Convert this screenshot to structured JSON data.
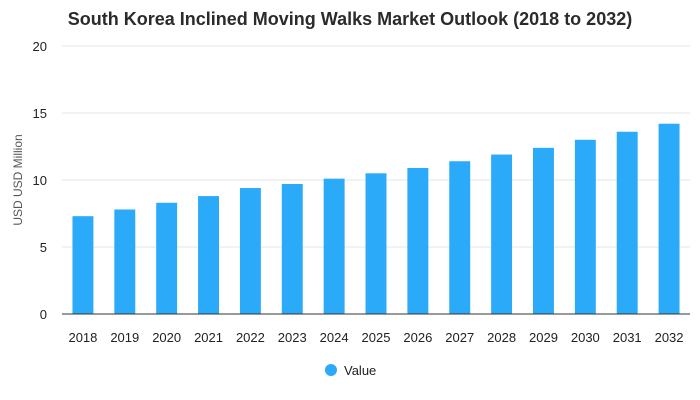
{
  "chart_data": {
    "type": "bar",
    "title": "South Korea Inclined Moving Walks Market Outlook (2018 to 2032)",
    "xlabel": "",
    "ylabel": "USD USD Million",
    "categories": [
      "2018",
      "2019",
      "2020",
      "2021",
      "2022",
      "2023",
      "2024",
      "2025",
      "2026",
      "2027",
      "2028",
      "2029",
      "2030",
      "2031",
      "2032"
    ],
    "series": [
      {
        "name": "Value",
        "values": [
          7.3,
          7.8,
          8.3,
          8.8,
          9.4,
          9.7,
          10.1,
          10.5,
          10.9,
          11.4,
          11.9,
          12.4,
          13.0,
          13.6,
          14.2
        ]
      }
    ],
    "ylim": [
      0,
      20
    ],
    "yticks": [
      0,
      5,
      10,
      15,
      20
    ],
    "legend": "bottom-center",
    "grid": true,
    "colors": {
      "bar": "#2aaaf8",
      "grid": "#e6e6e6",
      "axis": "#333333"
    }
  }
}
